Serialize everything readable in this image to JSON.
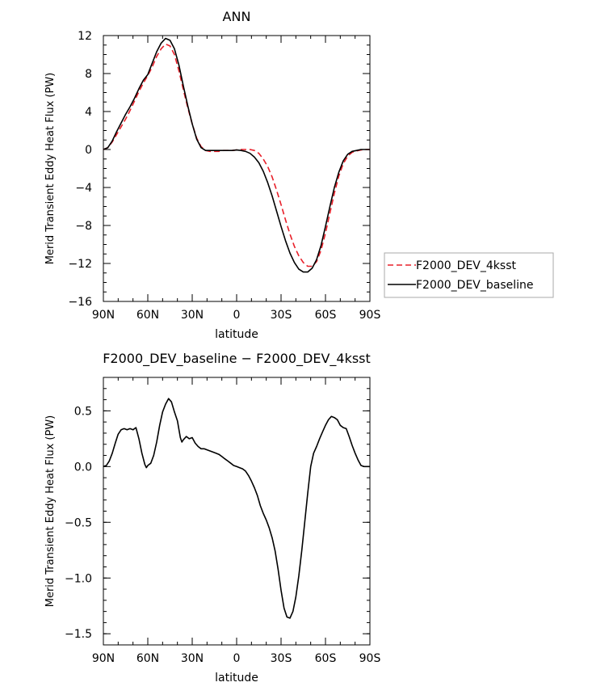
{
  "chart_data": [
    {
      "type": "line",
      "title": "ANN",
      "xlabel": "latitude",
      "ylabel": "Merid Transient Eddy Heat Flux (PW)",
      "xlim": [
        90,
        -90
      ],
      "ylim": [
        -16,
        12
      ],
      "x_ticks": [
        {
          "value": 90,
          "label": "90N"
        },
        {
          "value": 60,
          "label": "60N"
        },
        {
          "value": 30,
          "label": "30N"
        },
        {
          "value": 0,
          "label": "0"
        },
        {
          "value": -30,
          "label": "30S"
        },
        {
          "value": -60,
          "label": "60S"
        },
        {
          "value": -90,
          "label": "90S"
        }
      ],
      "y_ticks": [
        {
          "value": 12,
          "label": "12"
        },
        {
          "value": 8,
          "label": "8"
        },
        {
          "value": 4,
          "label": "4"
        },
        {
          "value": 0,
          "label": "0"
        },
        {
          "value": -4,
          "label": "−4"
        },
        {
          "value": -8,
          "label": "−8"
        },
        {
          "value": -12,
          "label": "−12"
        },
        {
          "value": -16,
          "label": "−16"
        }
      ],
      "legend_position": "right",
      "series": [
        {
          "name": "F2000_DEV_4ksst",
          "color": "#e8202a",
          "dash": "dashed",
          "x": [
            90,
            87,
            84,
            81,
            78,
            75,
            72,
            69,
            66,
            63,
            60,
            57,
            54,
            51,
            48,
            45,
            42,
            39,
            36,
            33,
            30,
            27,
            24,
            21,
            18,
            15,
            12,
            9,
            6,
            3,
            0,
            -3,
            -6,
            -9,
            -12,
            -15,
            -18,
            -21,
            -24,
            -27,
            -30,
            -33,
            -36,
            -39,
            -42,
            -45,
            -48,
            -51,
            -54,
            -57,
            -60,
            -63,
            -66,
            -69,
            -72,
            -75,
            -78,
            -81,
            -84,
            -87,
            -90
          ],
          "y": [
            0.0,
            0.2,
            0.8,
            1.6,
            2.4,
            3.2,
            4.1,
            5.1,
            6.1,
            7.0,
            7.8,
            8.7,
            9.8,
            10.6,
            11.1,
            10.9,
            10.0,
            8.3,
            6.3,
            4.4,
            2.7,
            1.2,
            0.3,
            -0.1,
            -0.2,
            -0.2,
            -0.2,
            -0.1,
            -0.1,
            -0.1,
            -0.05,
            0.0,
            0.0,
            0.0,
            -0.1,
            -0.4,
            -1.0,
            -1.8,
            -2.9,
            -4.3,
            -5.8,
            -7.4,
            -8.9,
            -10.2,
            -11.2,
            -11.9,
            -12.3,
            -12.3,
            -11.8,
            -10.6,
            -8.8,
            -6.7,
            -4.6,
            -2.8,
            -1.5,
            -0.7,
            -0.3,
            -0.15,
            -0.05,
            0.0,
            0.0
          ]
        },
        {
          "name": "F2000_DEV_baseline",
          "color": "#000000",
          "dash": "solid",
          "x": [
            90,
            87,
            84,
            81,
            78,
            75,
            72,
            69,
            66,
            63,
            60,
            57,
            54,
            51,
            48,
            45,
            42,
            39,
            36,
            33,
            30,
            27,
            24,
            21,
            18,
            15,
            12,
            9,
            6,
            3,
            0,
            -3,
            -6,
            -9,
            -12,
            -15,
            -18,
            -21,
            -24,
            -27,
            -30,
            -33,
            -36,
            -39,
            -42,
            -45,
            -48,
            -51,
            -54,
            -57,
            -60,
            -63,
            -66,
            -69,
            -72,
            -75,
            -78,
            -81,
            -84,
            -87,
            -90
          ],
          "y": [
            0.0,
            0.2,
            0.9,
            1.9,
            2.8,
            3.7,
            4.5,
            5.4,
            6.4,
            7.3,
            7.9,
            9.1,
            10.3,
            11.2,
            11.7,
            11.5,
            10.6,
            8.9,
            6.7,
            4.6,
            2.7,
            1.1,
            0.2,
            -0.1,
            -0.1,
            -0.1,
            -0.1,
            -0.1,
            -0.1,
            -0.1,
            -0.05,
            -0.1,
            -0.2,
            -0.4,
            -0.8,
            -1.4,
            -2.3,
            -3.5,
            -4.9,
            -6.5,
            -8.1,
            -9.6,
            -10.9,
            -11.9,
            -12.6,
            -12.9,
            -12.9,
            -12.5,
            -11.6,
            -10.1,
            -8.1,
            -6.0,
            -4.0,
            -2.4,
            -1.2,
            -0.5,
            -0.2,
            -0.1,
            0.0,
            0.0,
            0.0
          ]
        }
      ]
    },
    {
      "type": "line",
      "title": "F2000_DEV_baseline − F2000_DEV_4ksst",
      "xlabel": "latitude",
      "ylabel": "Merid Transient Eddy Heat Flux (PW)",
      "xlim": [
        90,
        -90
      ],
      "ylim": [
        -1.6,
        0.8
      ],
      "x_ticks": [
        {
          "value": 90,
          "label": "90N"
        },
        {
          "value": 60,
          "label": "60N"
        },
        {
          "value": 30,
          "label": "30N"
        },
        {
          "value": 0,
          "label": "0"
        },
        {
          "value": -30,
          "label": "30S"
        },
        {
          "value": -60,
          "label": "60S"
        },
        {
          "value": -90,
          "label": "90S"
        }
      ],
      "y_ticks": [
        {
          "value": 0.5,
          "label": "0.5"
        },
        {
          "value": 0.0,
          "label": "0.0"
        },
        {
          "value": -0.5,
          "label": "−0.5"
        },
        {
          "value": -1.0,
          "label": "−1.0"
        },
        {
          "value": -1.5,
          "label": "−1.5"
        }
      ],
      "series": [
        {
          "color": "#000000",
          "dash": "solid",
          "x": [
            90,
            88,
            86,
            84,
            82,
            80,
            78,
            76,
            74,
            72,
            70,
            68,
            66,
            64,
            62,
            61,
            60,
            58,
            56,
            54,
            52,
            50,
            48,
            46,
            44,
            42,
            40,
            38,
            37,
            36,
            34,
            32,
            30,
            28,
            26,
            24,
            22,
            20,
            18,
            16,
            14,
            12,
            10,
            8,
            6,
            4,
            2,
            0,
            -2,
            -4,
            -6,
            -8,
            -10,
            -12,
            -14,
            -16,
            -18,
            -20,
            -22,
            -24,
            -26,
            -28,
            -30,
            -32,
            -34,
            -36,
            -38,
            -40,
            -42,
            -44,
            -46,
            -48,
            -50,
            -52,
            -54,
            -56,
            -58,
            -60,
            -62,
            -64,
            -66,
            -68,
            -70,
            -72,
            -74,
            -76,
            -78,
            -80,
            -82,
            -84,
            -86,
            -88,
            -90
          ],
          "y": [
            0.0,
            0.01,
            0.05,
            0.12,
            0.21,
            0.29,
            0.33,
            0.34,
            0.33,
            0.34,
            0.33,
            0.35,
            0.25,
            0.12,
            0.02,
            -0.01,
            0.01,
            0.03,
            0.1,
            0.22,
            0.37,
            0.49,
            0.56,
            0.61,
            0.58,
            0.49,
            0.41,
            0.26,
            0.22,
            0.24,
            0.27,
            0.25,
            0.26,
            0.21,
            0.18,
            0.16,
            0.16,
            0.15,
            0.14,
            0.13,
            0.12,
            0.11,
            0.09,
            0.07,
            0.05,
            0.03,
            0.01,
            0.0,
            -0.01,
            -0.02,
            -0.04,
            -0.08,
            -0.13,
            -0.19,
            -0.26,
            -0.35,
            -0.42,
            -0.48,
            -0.55,
            -0.64,
            -0.76,
            -0.92,
            -1.11,
            -1.27,
            -1.35,
            -1.36,
            -1.3,
            -1.17,
            -0.98,
            -0.75,
            -0.5,
            -0.24,
            0.0,
            0.12,
            0.18,
            0.25,
            0.31,
            0.37,
            0.42,
            0.45,
            0.44,
            0.42,
            0.37,
            0.35,
            0.34,
            0.27,
            0.19,
            0.12,
            0.06,
            0.01,
            0.0,
            0.0,
            0.0
          ]
        }
      ]
    }
  ]
}
